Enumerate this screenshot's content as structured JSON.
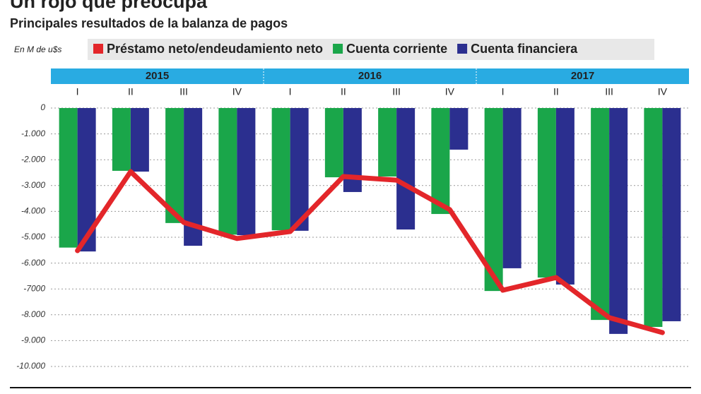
{
  "chart_data": {
    "type": "bar-line",
    "title": "Un rojo que preocupa",
    "subtitle": "Principales resultados de la balanza de pagos",
    "unit": "En M de u$s",
    "years": [
      "2015",
      "2016",
      "2017"
    ],
    "categories": [
      "I",
      "II",
      "III",
      "IV",
      "I",
      "II",
      "III",
      "IV",
      "I",
      "II",
      "III",
      "IV"
    ],
    "series": [
      {
        "name": "Préstamo neto/endeudamiento neto",
        "color": "#e3262a",
        "kind": "line",
        "values": [
          -5520,
          -2460,
          -4430,
          -5050,
          -4780,
          -2650,
          -2790,
          -3930,
          -7050,
          -6560,
          -8110,
          -8690
        ]
      },
      {
        "name": "Cuenta corriente",
        "color": "#1aa64a",
        "kind": "bar",
        "values": [
          -5400,
          -2430,
          -4450,
          -4900,
          -4730,
          -2680,
          -2650,
          -4100,
          -7080,
          -6560,
          -8200,
          -8470
        ]
      },
      {
        "name": "Cuenta financiera",
        "color": "#2b2f8f",
        "kind": "bar",
        "values": [
          -5550,
          -2460,
          -5330,
          -4920,
          -4750,
          -3250,
          -4700,
          -1610,
          -6200,
          -6830,
          -8740,
          -8250
        ]
      }
    ],
    "ylim": [
      0,
      -10000
    ],
    "yticks": [
      0,
      {
        "value": -1000,
        "label": "-1.000"
      },
      {
        "value": -2000,
        "label": "-2.000"
      },
      {
        "value": -3000,
        "label": "-3.000"
      },
      {
        "value": -4000,
        "label": "-4.000"
      },
      {
        "value": -5000,
        "label": "-5.000"
      },
      {
        "value": -6000,
        "label": "-6.000"
      },
      {
        "value": -7000,
        "label": "-7000"
      },
      {
        "value": -8000,
        "label": "-8.000"
      },
      {
        "value": -9000,
        "label": "-9.000"
      },
      {
        "value": -10000,
        "label": "-10.000"
      }
    ],
    "grid": true
  }
}
